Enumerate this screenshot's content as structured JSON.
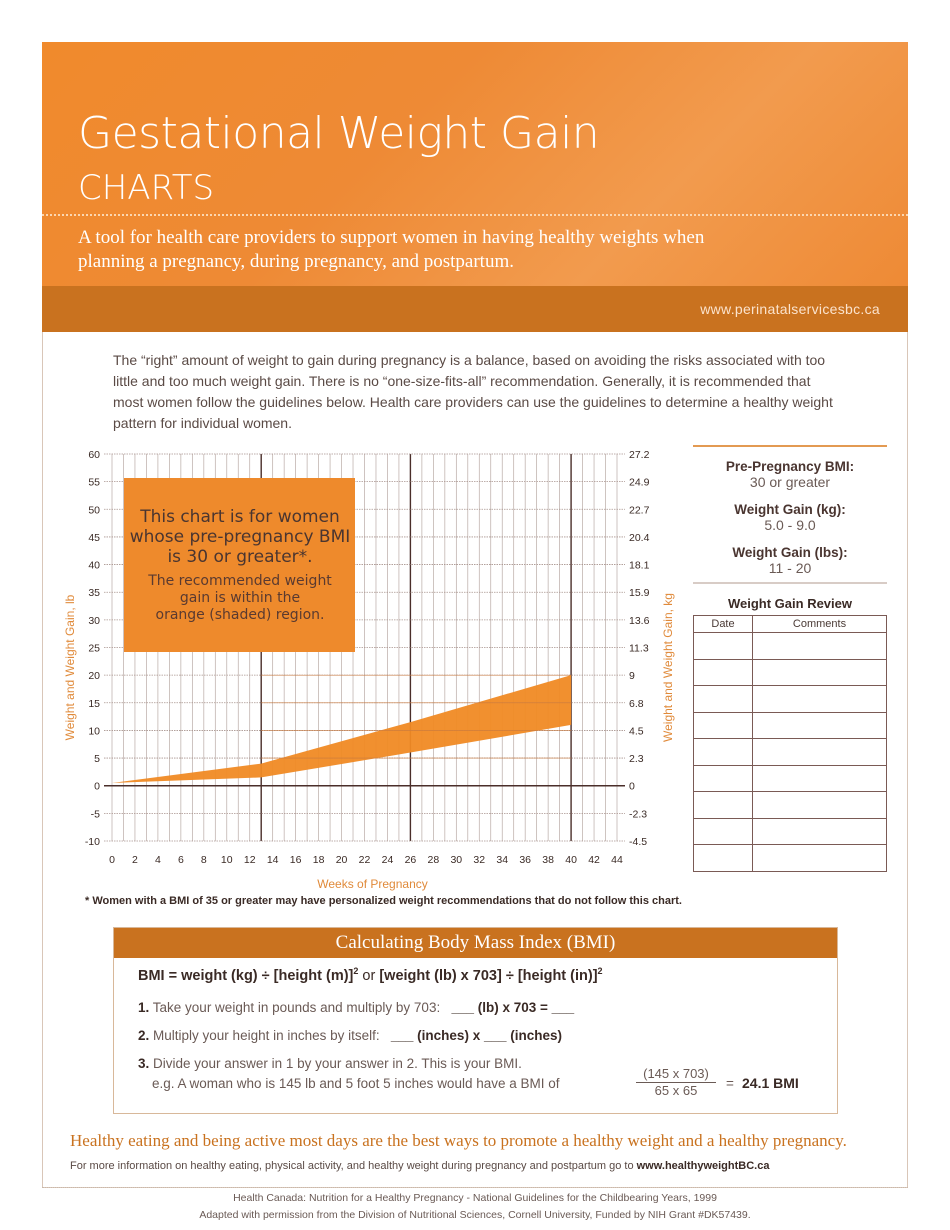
{
  "header": {
    "title": "Gestational Weight Gain",
    "subtitle": "CHARTS",
    "tagline": "A tool for health care providers to support women in having healthy weights when planning a pregnancy, during pregnancy, and postpartum.",
    "url": "www.perinatalservicesbc.ca"
  },
  "intro": "The “right” amount of weight to gain during pregnancy is a balance, based on avoiding the risks associated with too little and too much weight gain. There is no “one-size-fits-all” recommendation. Generally, it is recommended that most women follow the guidelines below. Health care providers can use the guidelines to determine a healthy weight pattern for individual women.",
  "chart_data": {
    "type": "area",
    "xlabel": "Weeks of Pregnancy",
    "ylabel": "Weight and Weight Gain, lb",
    "y2label": "Weight and Weight Gain, kg",
    "xlim": [
      0,
      44
    ],
    "ylim": [
      -10,
      60
    ],
    "xticks": [
      "0",
      "2",
      "4",
      "6",
      "8",
      "10",
      "12",
      "14",
      "16",
      "18",
      "20",
      "22",
      "24",
      "26",
      "28",
      "30",
      "32",
      "34",
      "36",
      "38",
      "40",
      "42",
      "44"
    ],
    "yticks": [
      "60",
      "55",
      "50",
      "45",
      "40",
      "35",
      "30",
      "25",
      "20",
      "15",
      "10",
      "5",
      "0",
      "-5",
      "-10"
    ],
    "y2ticks": [
      "27.2",
      "24.9",
      "22.7",
      "20.4",
      "18.1",
      "15.9",
      "13.6",
      "11.3",
      "9",
      "6.8",
      "4.5",
      "2.3",
      "0",
      "-2.3",
      "-4.5"
    ],
    "grid": true,
    "band_color": "#f08a24",
    "x": [
      0,
      13,
      26,
      40
    ],
    "upper": [
      0.5,
      4,
      11.5,
      20
    ],
    "lower": [
      0.5,
      1.5,
      6,
      11
    ],
    "annotation_title": "This chart is for women whose pre-pregnancy BMI is 30 or greater*.",
    "annotation_body": "The recommended weight gain is within the orange (shaded) region."
  },
  "footnote": "* Women with a BMI of 35 or greater may have personalized weight recommendations that do not follow this chart.",
  "info": {
    "bmi_label": "Pre-Pregnancy BMI:",
    "bmi_value": "30 or greater",
    "kg_label": "Weight Gain (kg):",
    "kg_value": "5.0 - 9.0",
    "lbs_label": "Weight Gain (lbs):",
    "lbs_value": "11 - 20",
    "review_title": "Weight Gain Review",
    "col_date": "Date",
    "col_comments": "Comments"
  },
  "bmi": {
    "heading": "Calculating Body Mass Index (BMI)",
    "formula_a": "BMI = weight (kg) ÷ [height (m)]",
    "formula_or": " or ",
    "formula_b": "[weight (lb) x 703] ÷ [height (in)]",
    "sq": "2",
    "step1_num": "1.",
    "step1": "Take your weight in pounds and multiply by 703:",
    "step1_fill": "___ (lb) x 703 = ___",
    "step2_num": "2.",
    "step2": "Multiply your height in inches by itself:",
    "step2_fill": "___ (inches) x ___ (inches)",
    "step3_num": "3.",
    "step3": "Divide your answer in 1 by your answer in 2. This is your BMI.",
    "example": "e.g.  A woman who is 145 lb and 5 foot 5 inches would have a BMI of",
    "num": "(145 x 703)",
    "den": "65 x 65",
    "eq": "=",
    "result": "24.1  BMI"
  },
  "footer": {
    "tagline": "Healthy eating and being active most days are the best ways to promote a healthy weight and a healthy pregnancy.",
    "more": "For more information on healthy eating, physical activity, and healthy weight during pregnancy and postpartum go to ",
    "more_link": "www.healthyweightBC.ca",
    "cite1": "Health Canada: Nutrition for a Healthy Pregnancy - National Guidelines for the Childbearing Years, 1999",
    "cite2": "Adapted with permission from the Division of Nutritional Sciences, Cornell University, Funded by NIH Grant #DK57439."
  }
}
